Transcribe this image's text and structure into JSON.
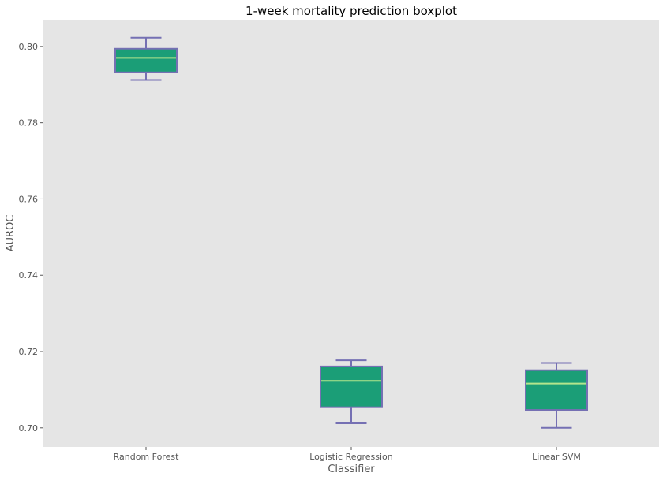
{
  "chart_data": {
    "type": "boxplot",
    "title": "1-week mortality prediction boxplot",
    "xlabel": "Classifier",
    "ylabel": "AUROC",
    "ylim": [
      0.695,
      0.807
    ],
    "yticks": [
      "0.70",
      "0.72",
      "0.74",
      "0.76",
      "0.78",
      "0.80"
    ],
    "ytick_values": [
      0.7,
      0.72,
      0.74,
      0.76,
      0.78,
      0.8
    ],
    "grid": false,
    "categories": [
      "Random Forest",
      "Logistic Regression",
      "Linear SVM"
    ],
    "boxes": [
      {
        "name": "Random Forest",
        "whisker_low": 0.7912,
        "q1": 0.7932,
        "median": 0.797,
        "q3": 0.7994,
        "whisker_high": 0.8023
      },
      {
        "name": "Logistic Regression",
        "whisker_low": 0.7012,
        "q1": 0.7054,
        "median": 0.7123,
        "q3": 0.7161,
        "whisker_high": 0.7177
      },
      {
        "name": "Linear SVM",
        "whisker_low": 0.7,
        "q1": 0.7047,
        "median": 0.7116,
        "q3": 0.7151,
        "whisker_high": 0.717
      }
    ],
    "colors": {
      "background": "#e5e5e5",
      "box_fill": "#1b9e77",
      "box_edge": "#7570b3",
      "whisker": "#7570b3",
      "median": "#b3e58c"
    }
  }
}
